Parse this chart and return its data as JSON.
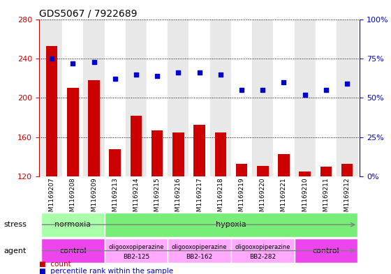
{
  "title": "GDS5067 / 7922689",
  "samples": [
    "GSM1169207",
    "GSM1169208",
    "GSM1169209",
    "GSM1169213",
    "GSM1169214",
    "GSM1169215",
    "GSM1169216",
    "GSM1169217",
    "GSM1169218",
    "GSM1169219",
    "GSM1169220",
    "GSM1169221",
    "GSM1169210",
    "GSM1169211",
    "GSM1169212"
  ],
  "counts": [
    253,
    210,
    218,
    148,
    182,
    167,
    165,
    173,
    165,
    133,
    131,
    143,
    125,
    130,
    133
  ],
  "percentiles": [
    75,
    72,
    73,
    62,
    65,
    64,
    66,
    66,
    65,
    55,
    55,
    60,
    52,
    55,
    59
  ],
  "ylim_left": [
    120,
    280
  ],
  "ylim_right": [
    0,
    100
  ],
  "yticks_left": [
    120,
    160,
    200,
    240,
    280
  ],
  "yticks_right": [
    0,
    25,
    50,
    75,
    100
  ],
  "bar_color": "#cc0000",
  "dot_color": "#0000cc",
  "bar_width": 0.55,
  "stress_groups": [
    {
      "label": "normoxia",
      "start": 0,
      "end": 3,
      "color": "#aaffaa"
    },
    {
      "label": "hypoxia",
      "start": 3,
      "end": 15,
      "color": "#77ee77"
    }
  ],
  "agent_groups": [
    {
      "label": "control",
      "start": 0,
      "end": 3,
      "color": "#ee44ee"
    },
    {
      "label": "oligooxopiperazine\nBB2-125",
      "start": 3,
      "end": 6,
      "color": "#ffaaff"
    },
    {
      "label": "oligooxopiperazine\nBB2-162",
      "start": 6,
      "end": 9,
      "color": "#ffaaff"
    },
    {
      "label": "oligooxopiperazine\nBB2-282",
      "start": 9,
      "end": 12,
      "color": "#ffaaff"
    },
    {
      "label": "control",
      "start": 12,
      "end": 15,
      "color": "#ee44ee"
    }
  ],
  "tick_color_left": "#cc0000",
  "tick_color_right": "#0000cc",
  "grid_linestyle": "dotted",
  "col_bg_even": "#e8e8e8",
  "col_bg_odd": "#ffffff"
}
